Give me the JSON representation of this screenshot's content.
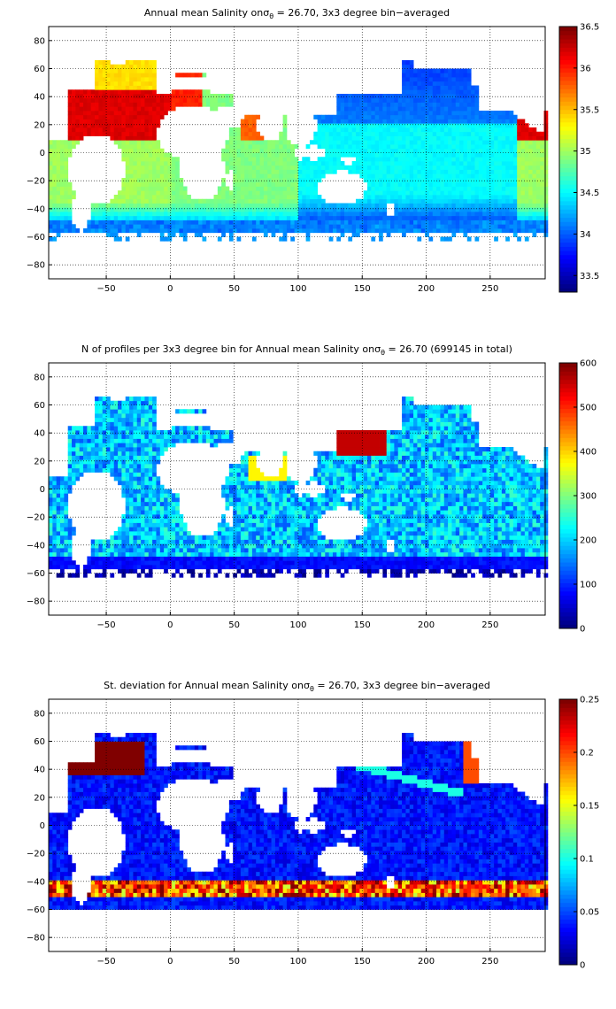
{
  "chart_data": [
    {
      "type": "heatmap",
      "title_prefix": "Annual mean Salinity on",
      "title_symbol": "σ",
      "title_subscript": "θ",
      "title_suffix": " = 26.70, 3x3 degree bin−averaged",
      "xticks": [
        "−50",
        "0",
        "50",
        "100",
        "150",
        "200",
        "250"
      ],
      "xtick_values": [
        -50,
        0,
        50,
        100,
        150,
        200,
        250
      ],
      "xlim": [
        -95,
        293
      ],
      "yticks": [
        "80",
        "60",
        "40",
        "20",
        "0",
        "−20",
        "−40",
        "−60",
        "−80"
      ],
      "ytick_values": [
        80,
        60,
        40,
        20,
        0,
        -20,
        -40,
        -60,
        -80
      ],
      "ylim": [
        -90,
        90
      ],
      "colorbar_ticks": [
        "36.5",
        "36",
        "35.5",
        "35",
        "34.5",
        "34",
        "33.5"
      ],
      "colorbar_tick_values": [
        36.5,
        36,
        35.5,
        35,
        34.5,
        34,
        33.5
      ],
      "clim": [
        33.3,
        36.5
      ],
      "grid": true,
      "colormap": "jet",
      "bin_size_deg": 3
    },
    {
      "type": "heatmap",
      "title_prefix": "N of profiles per 3x3 degree bin for Annual mean Salinity on",
      "title_symbol": "σ",
      "title_subscript": "θ",
      "title_suffix": " = 26.70 (699145 in total)",
      "xticks": [
        "−50",
        "0",
        "50",
        "100",
        "150",
        "200",
        "250"
      ],
      "xtick_values": [
        -50,
        0,
        50,
        100,
        150,
        200,
        250
      ],
      "xlim": [
        -95,
        293
      ],
      "yticks": [
        "80",
        "60",
        "40",
        "20",
        "0",
        "−20",
        "−40",
        "−60",
        "−80"
      ],
      "ytick_values": [
        80,
        60,
        40,
        20,
        0,
        -20,
        -40,
        -60,
        -80
      ],
      "ylim": [
        -90,
        90
      ],
      "colorbar_ticks": [
        "600",
        "500",
        "400",
        "300",
        "200",
        "100",
        "0"
      ],
      "colorbar_tick_values": [
        600,
        500,
        400,
        300,
        200,
        100,
        0
      ],
      "clim": [
        0,
        600
      ],
      "grid": true,
      "colormap": "jet",
      "bin_size_deg": 3
    },
    {
      "type": "heatmap",
      "title_prefix": "St. deviation for Annual mean Salinity on",
      "title_symbol": "σ",
      "title_subscript": "θ",
      "title_suffix": " = 26.70, 3x3 degree bin−averaged",
      "xticks": [
        "−50",
        "0",
        "50",
        "100",
        "150",
        "200",
        "250"
      ],
      "xtick_values": [
        -50,
        0,
        50,
        100,
        150,
        200,
        250
      ],
      "xlim": [
        -95,
        293
      ],
      "yticks": [
        "80",
        "60",
        "40",
        "20",
        "0",
        "−20",
        "−40",
        "−60",
        "−80"
      ],
      "ytick_values": [
        80,
        60,
        40,
        20,
        0,
        -20,
        -40,
        -60,
        -80
      ],
      "ylim": [
        -90,
        90
      ],
      "colorbar_ticks": [
        "0.25",
        "0.2",
        "0.15",
        "0.1",
        "0.05",
        "0"
      ],
      "colorbar_tick_values": [
        0.25,
        0.2,
        0.15,
        0.1,
        0.05,
        0
      ],
      "clim": [
        0,
        0.25
      ],
      "grid": true,
      "colormap": "jet",
      "bin_size_deg": 3
    }
  ]
}
